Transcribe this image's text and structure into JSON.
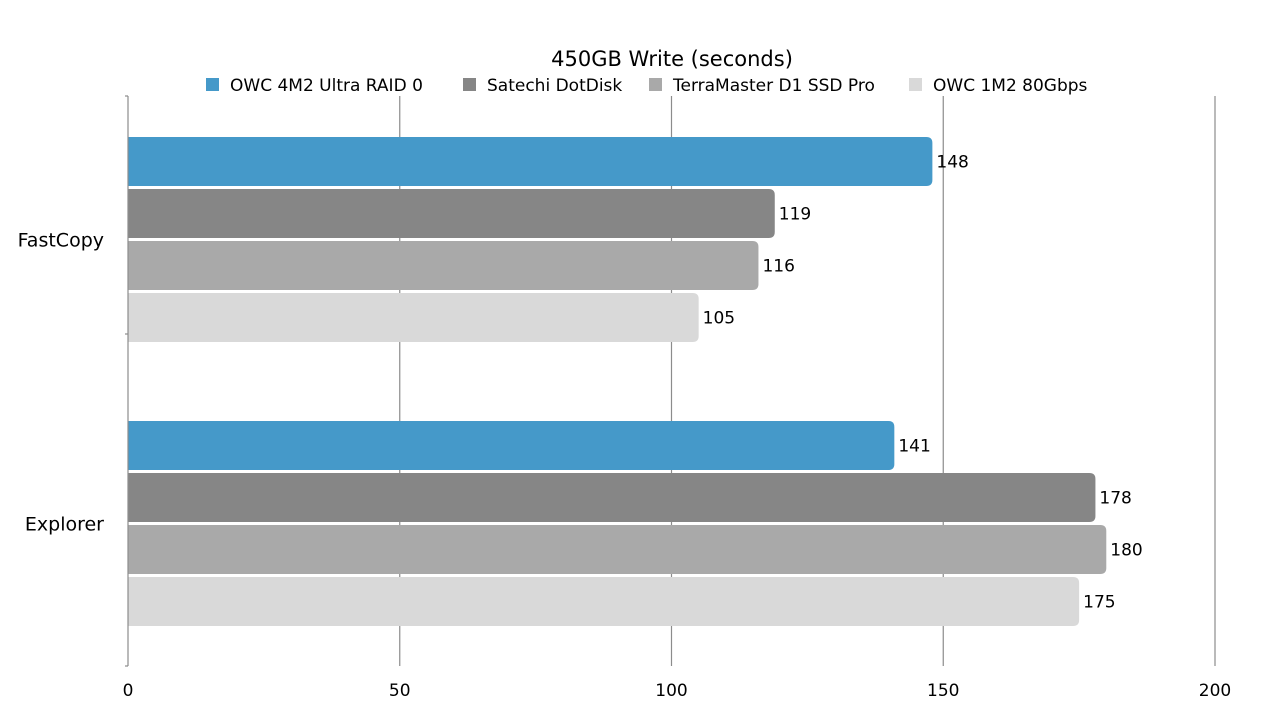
{
  "chart_data": {
    "type": "bar",
    "orientation": "horizontal",
    "title": "450GB Write (seconds)",
    "xlabel": "",
    "ylabel": "",
    "categories": [
      "FastCopy",
      "Explorer"
    ],
    "xlim": [
      0,
      200
    ],
    "ticks": [
      0,
      50,
      100,
      150,
      200
    ],
    "grid": true,
    "legend_position": "top",
    "series": [
      {
        "name": "OWC  4M2 Ultra RAID 0",
        "color": "#4599c9",
        "values": [
          148,
          141
        ]
      },
      {
        "name": "Satechi DotDisk",
        "color": "#868686",
        "values": [
          119,
          178
        ]
      },
      {
        "name": "TerraMaster D1 SSD Pro",
        "color": "#a9a9a9",
        "values": [
          116,
          180
        ]
      },
      {
        "name": "OWC 1M2 80Gbps",
        "color": "#d9d9d9",
        "values": [
          105,
          175
        ]
      }
    ]
  }
}
